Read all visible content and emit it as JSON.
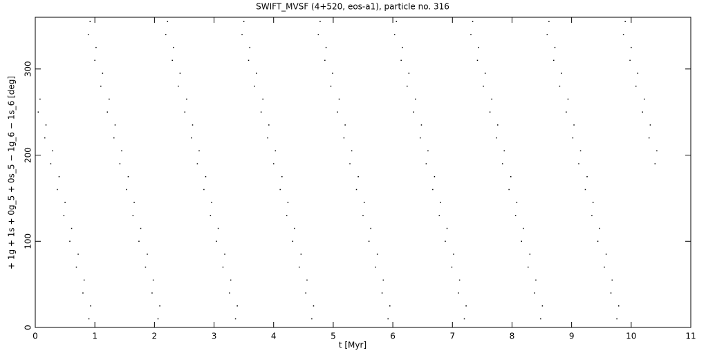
{
  "chart_data": {
    "type": "scatter",
    "title": "SWIFT_MVSF (4+520, eos-a1), particle no. 316",
    "xlabel": "t [Myr]",
    "ylabel": "+ 1g + 1s + 0g_5 + 0s_5 − 1g_6 − 1s_6 [deg]",
    "color": "#000000",
    "xlim": [
      0,
      11
    ],
    "xticks": [
      0,
      1,
      2,
      3,
      4,
      5,
      6,
      7,
      8,
      9,
      10,
      11
    ],
    "ylim": [
      0,
      360
    ],
    "yticks": [
      0,
      100,
      200,
      300
    ],
    "x": [
      0.08,
      0.05,
      0.18,
      0.16,
      0.29,
      0.26,
      0.4,
      0.37,
      0.5,
      0.48,
      0.61,
      0.58,
      0.72,
      0.69,
      0.82,
      0.8,
      0.93,
      0.9,
      0.92,
      0.89,
      1.02,
      1.0,
      1.13,
      1.1,
      1.24,
      1.21,
      1.34,
      1.32,
      1.45,
      1.42,
      1.56,
      1.53,
      1.66,
      1.64,
      1.77,
      1.74,
      1.88,
      1.85,
      1.98,
      1.96,
      2.09,
      2.06,
      2.22,
      2.19,
      2.32,
      2.3,
      2.43,
      2.4,
      2.54,
      2.51,
      2.64,
      2.62,
      2.75,
      2.72,
      2.86,
      2.83,
      2.96,
      2.94,
      3.07,
      3.04,
      3.18,
      3.15,
      3.28,
      3.26,
      3.39,
      3.36,
      3.5,
      3.47,
      3.6,
      3.58,
      3.71,
      3.68,
      3.82,
      3.79,
      3.92,
      3.9,
      4.03,
      4.0,
      4.14,
      4.11,
      4.24,
      4.22,
      4.35,
      4.32,
      4.46,
      4.43,
      4.56,
      4.54,
      4.67,
      4.64,
      4.78,
      4.75,
      4.88,
      4.86,
      4.99,
      4.96,
      5.1,
      5.07,
      5.2,
      5.18,
      5.31,
      5.28,
      5.42,
      5.39,
      5.52,
      5.5,
      5.63,
      5.6,
      5.74,
      5.71,
      5.84,
      5.82,
      5.95,
      5.92,
      6.06,
      6.03,
      6.16,
      6.14,
      6.27,
      6.24,
      6.38,
      6.35,
      6.48,
      6.46,
      6.59,
      6.56,
      6.7,
      6.67,
      6.8,
      6.78,
      6.91,
      6.88,
      7.02,
      6.99,
      7.12,
      7.1,
      7.23,
      7.2,
      7.34,
      7.31,
      7.44,
      7.42,
      7.55,
      7.52,
      7.66,
      7.63,
      7.76,
      7.74,
      7.87,
      7.84,
      7.98,
      7.95,
      8.08,
      8.06,
      8.19,
      8.16,
      8.3,
      8.27,
      8.4,
      8.38,
      8.51,
      8.48,
      8.62,
      8.59,
      8.72,
      8.7,
      8.83,
      8.8,
      8.94,
      8.91,
      9.04,
      9.02,
      9.15,
      9.12,
      9.26,
      9.23,
      9.36,
      9.34,
      9.47,
      9.44,
      9.58,
      9.55,
      9.68,
      9.66,
      9.79,
      9.76,
      9.9,
      9.87,
      10.0,
      9.98,
      10.11,
      10.08,
      10.22,
      10.19,
      10.32,
      10.3,
      10.43,
      10.4
    ],
    "values": [
      265,
      250,
      235,
      220,
      205,
      190,
      175,
      160,
      145,
      130,
      115,
      100,
      85,
      70,
      55,
      40,
      25,
      10,
      355,
      340,
      325,
      310,
      295,
      280,
      265,
      250,
      235,
      220,
      205,
      190,
      175,
      160,
      145,
      130,
      115,
      100,
      85,
      70,
      55,
      40,
      25,
      10,
      355,
      340,
      325,
      310,
      295,
      280,
      265,
      250,
      235,
      220,
      205,
      190,
      175,
      160,
      145,
      130,
      115,
      100,
      85,
      70,
      55,
      40,
      25,
      10,
      355,
      340,
      325,
      310,
      295,
      280,
      265,
      250,
      235,
      220,
      205,
      190,
      175,
      160,
      145,
      130,
      115,
      100,
      85,
      70,
      55,
      40,
      25,
      10,
      355,
      340,
      325,
      310,
      295,
      280,
      265,
      250,
      235,
      220,
      205,
      190,
      175,
      160,
      145,
      130,
      115,
      100,
      85,
      70,
      55,
      40,
      25,
      10,
      355,
      340,
      325,
      310,
      295,
      280,
      265,
      250,
      235,
      220,
      205,
      190,
      175,
      160,
      145,
      130,
      115,
      100,
      85,
      70,
      55,
      40,
      25,
      10,
      355,
      340,
      325,
      310,
      295,
      280,
      265,
      250,
      235,
      220,
      205,
      190,
      175,
      160,
      145,
      130,
      115,
      100,
      85,
      70,
      55,
      40,
      25,
      10,
      355,
      340,
      325,
      310,
      295,
      280,
      265,
      250,
      235,
      220,
      205,
      190,
      175,
      160,
      145,
      130,
      115,
      100,
      85,
      70,
      55,
      40,
      25,
      10,
      355,
      340,
      325,
      310,
      295,
      280,
      265,
      250,
      235,
      220,
      205,
      190
    ]
  }
}
